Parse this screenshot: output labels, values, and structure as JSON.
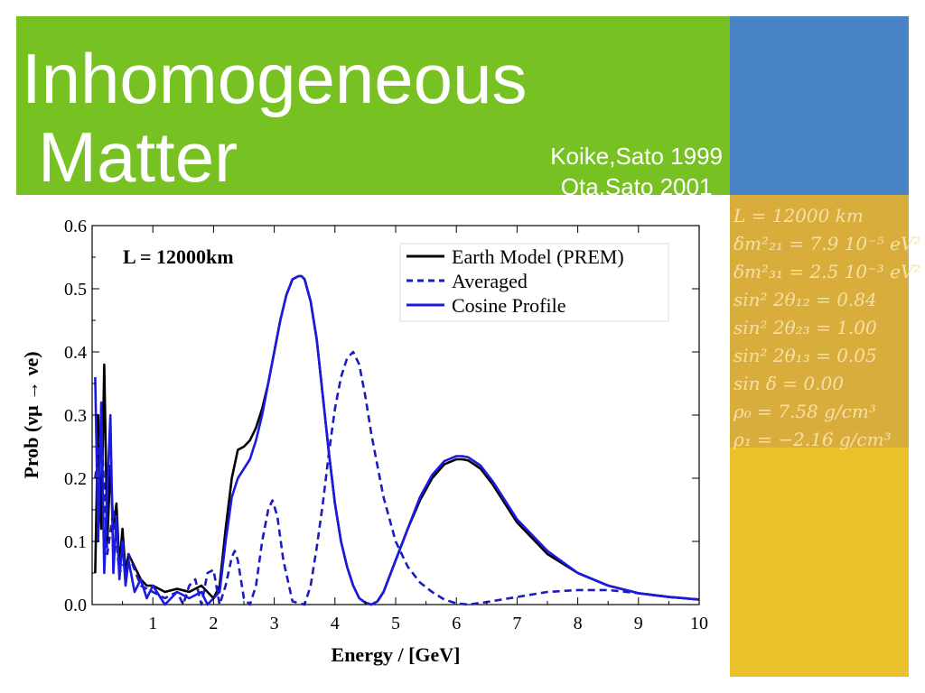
{
  "slide": {
    "title_line1": "Inhomogeneous",
    "title_line2": "Matter",
    "citation_line1": "Koike,Sato 1999",
    "citation_line2": "Ota,Sato 2001",
    "colors": {
      "green": "#77c222",
      "blue": "#4783c5",
      "yellow": "#eac12a",
      "param_box": "#d9ad3b"
    }
  },
  "parameters": [
    "L = 12000 km",
    "δm²₂₁ = 7.9 10⁻⁵ eV²",
    "δm²₃₁ = 2.5 10⁻³ eV²",
    "sin² 2θ₁₂ = 0.84",
    "sin² 2θ₂₃ = 1.00",
    "sin² 2θ₁₃ = 0.05",
    "sin δ = 0.00",
    "ρ₀ = 7.58 g/cm³",
    "ρ₁ = −2.16 g/cm³"
  ],
  "chart_data": {
    "type": "line",
    "annotation": "L = 12000km",
    "xlabel": "Energy / [GeV]",
    "ylabel": "Prob (νμ → νe)",
    "xlim": [
      0,
      10
    ],
    "ylim": [
      0,
      0.6
    ],
    "xticks": [
      "1",
      "2",
      "3",
      "4",
      "5",
      "6",
      "7",
      "8",
      "9",
      "10"
    ],
    "yticks": [
      "0.0",
      "0.1",
      "0.2",
      "0.3",
      "0.4",
      "0.5",
      "0.6"
    ],
    "legend_position": "top-right",
    "series": [
      {
        "name": "Earth Model (PREM)",
        "color": "#000000",
        "style": "solid",
        "x": [
          0.05,
          0.1,
          0.15,
          0.2,
          0.25,
          0.3,
          0.35,
          0.4,
          0.45,
          0.5,
          0.55,
          0.6,
          0.7,
          0.8,
          0.9,
          1.0,
          1.2,
          1.4,
          1.6,
          1.8,
          1.9,
          2.0,
          2.1,
          2.2,
          2.3,
          2.4,
          2.5,
          2.6,
          2.7,
          2.8,
          2.9,
          3.0,
          3.1,
          3.2,
          3.3,
          3.4,
          3.45,
          3.5,
          3.6,
          3.7,
          3.8,
          3.9,
          4.0,
          4.1,
          4.2,
          4.3,
          4.4,
          4.5,
          4.6,
          4.7,
          4.8,
          5.0,
          5.2,
          5.4,
          5.6,
          5.8,
          6.0,
          6.1,
          6.2,
          6.4,
          6.6,
          6.8,
          7.0,
          7.5,
          8.0,
          8.5,
          9.0,
          9.5,
          10.0
        ],
        "y": [
          0.05,
          0.3,
          0.12,
          0.38,
          0.1,
          0.22,
          0.12,
          0.16,
          0.06,
          0.12,
          0.05,
          0.08,
          0.06,
          0.04,
          0.03,
          0.03,
          0.02,
          0.025,
          0.02,
          0.03,
          0.02,
          0.01,
          0.03,
          0.12,
          0.2,
          0.245,
          0.25,
          0.26,
          0.28,
          0.31,
          0.35,
          0.4,
          0.45,
          0.49,
          0.515,
          0.52,
          0.52,
          0.515,
          0.48,
          0.42,
          0.33,
          0.24,
          0.16,
          0.1,
          0.06,
          0.03,
          0.01,
          0.003,
          0.0,
          0.005,
          0.02,
          0.07,
          0.12,
          0.165,
          0.2,
          0.222,
          0.23,
          0.23,
          0.228,
          0.215,
          0.19,
          0.16,
          0.13,
          0.08,
          0.05,
          0.03,
          0.018,
          0.012,
          0.008
        ]
      },
      {
        "name": "Averaged",
        "color": "#1b1bbf",
        "style": "dashed",
        "x": [
          0.05,
          0.15,
          0.25,
          0.35,
          0.45,
          0.6,
          0.8,
          1.0,
          1.2,
          1.4,
          1.5,
          1.6,
          1.7,
          1.8,
          1.9,
          2.0,
          2.1,
          2.2,
          2.3,
          2.35,
          2.4,
          2.5,
          2.6,
          2.7,
          2.8,
          2.9,
          2.97,
          3.05,
          3.15,
          3.3,
          3.5,
          3.6,
          3.7,
          3.8,
          3.9,
          4.0,
          4.1,
          4.2,
          4.3,
          4.4,
          4.5,
          4.6,
          4.7,
          4.8,
          5.0,
          5.2,
          5.4,
          5.6,
          5.8,
          6.0,
          6.2,
          6.5,
          7.0,
          7.5,
          8.0,
          8.5,
          9.0,
          9.5,
          10.0
        ],
        "y": [
          0.2,
          0.28,
          0.08,
          0.15,
          0.05,
          0.08,
          0.03,
          0.02,
          0.01,
          0.02,
          0.0,
          0.03,
          0.04,
          0.0,
          0.05,
          0.055,
          0.0,
          0.03,
          0.075,
          0.085,
          0.07,
          0.01,
          0.0,
          0.03,
          0.1,
          0.15,
          0.165,
          0.14,
          0.07,
          0.005,
          0.0,
          0.03,
          0.09,
          0.16,
          0.24,
          0.31,
          0.36,
          0.39,
          0.4,
          0.38,
          0.33,
          0.27,
          0.22,
          0.17,
          0.1,
          0.06,
          0.035,
          0.02,
          0.008,
          0.002,
          0.0,
          0.004,
          0.012,
          0.02,
          0.023,
          0.023,
          0.018,
          0.012,
          0.008
        ]
      },
      {
        "name": "Cosine Profile",
        "color": "#1a1ae0",
        "style": "solid",
        "x": [
          0.05,
          0.1,
          0.15,
          0.2,
          0.25,
          0.3,
          0.35,
          0.4,
          0.45,
          0.5,
          0.55,
          0.6,
          0.7,
          0.8,
          0.9,
          1.0,
          1.2,
          1.4,
          1.6,
          1.8,
          1.9,
          2.0,
          2.1,
          2.2,
          2.3,
          2.4,
          2.5,
          2.6,
          2.7,
          2.8,
          2.9,
          3.0,
          3.1,
          3.2,
          3.3,
          3.4,
          3.45,
          3.5,
          3.6,
          3.7,
          3.8,
          3.9,
          4.0,
          4.1,
          4.2,
          4.3,
          4.4,
          4.5,
          4.6,
          4.7,
          4.8,
          5.0,
          5.2,
          5.4,
          5.6,
          5.8,
          6.0,
          6.1,
          6.2,
          6.4,
          6.6,
          6.8,
          7.0,
          7.5,
          8.0,
          8.5,
          9.0,
          9.5,
          10.0
        ],
        "y": [
          0.36,
          0.1,
          0.32,
          0.05,
          0.18,
          0.3,
          0.05,
          0.14,
          0.04,
          0.1,
          0.03,
          0.07,
          0.02,
          0.04,
          0.01,
          0.03,
          0.0,
          0.02,
          0.01,
          0.02,
          0.0,
          0.01,
          0.02,
          0.1,
          0.17,
          0.2,
          0.215,
          0.23,
          0.26,
          0.3,
          0.35,
          0.4,
          0.45,
          0.49,
          0.515,
          0.52,
          0.52,
          0.515,
          0.48,
          0.42,
          0.33,
          0.24,
          0.16,
          0.1,
          0.06,
          0.03,
          0.01,
          0.003,
          0.0,
          0.005,
          0.02,
          0.07,
          0.12,
          0.17,
          0.205,
          0.227,
          0.235,
          0.235,
          0.233,
          0.22,
          0.195,
          0.165,
          0.135,
          0.085,
          0.05,
          0.03,
          0.018,
          0.012,
          0.008
        ]
      }
    ]
  }
}
